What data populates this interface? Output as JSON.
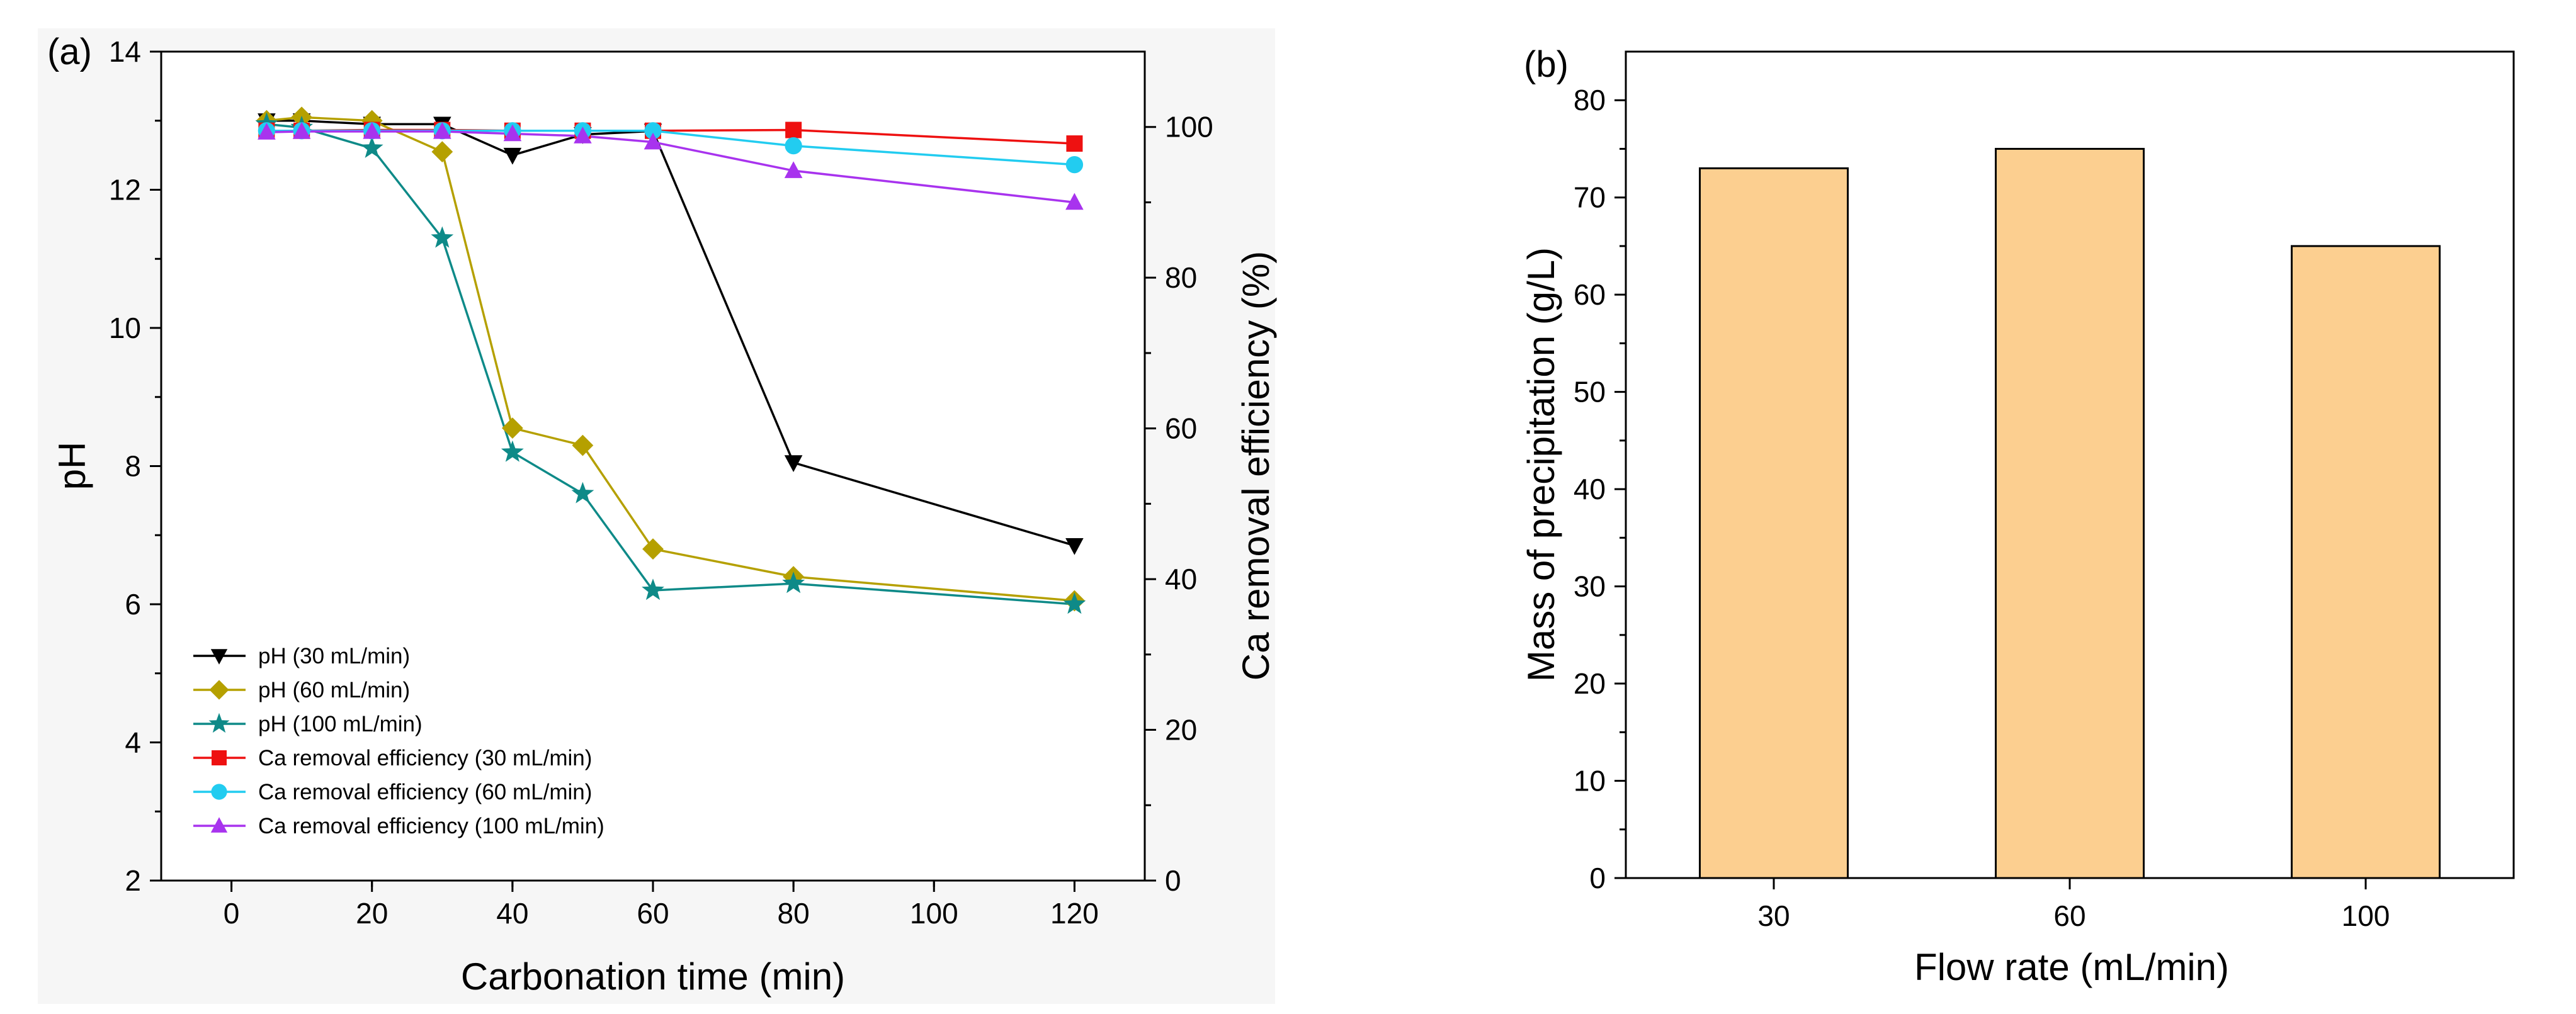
{
  "chart_data": [
    {
      "panel": "(a)",
      "type": "line",
      "xlabel": "Carbonation time (min)",
      "ylabel": "pH",
      "y2label": "Ca removal efficiency (%)",
      "xlim": [
        -10,
        130
      ],
      "ylim": [
        2,
        14
      ],
      "y2lim": [
        0,
        110
      ],
      "xticks": [
        0,
        20,
        40,
        60,
        80,
        100,
        120
      ],
      "yticks": [
        2,
        4,
        6,
        8,
        10,
        12,
        14
      ],
      "y2ticks": [
        0,
        20,
        40,
        60,
        80,
        100
      ],
      "legend_position": "bottom-left",
      "series": [
        {
          "name": "pH (30 mL/min)",
          "axis": "left",
          "color": "#000000",
          "marker": "triangle-down",
          "x": [
            5,
            10,
            20,
            30,
            40,
            50,
            60,
            80,
            120
          ],
          "y": [
            13.0,
            13.0,
            12.95,
            12.95,
            12.5,
            12.8,
            12.85,
            8.05,
            6.85
          ]
        },
        {
          "name": "pH (60 mL/min)",
          "axis": "left",
          "color": "#b5a000",
          "marker": "diamond",
          "x": [
            5,
            10,
            20,
            30,
            40,
            50,
            60,
            80,
            120
          ],
          "y": [
            13.0,
            13.05,
            13.0,
            12.55,
            8.55,
            8.3,
            6.8,
            6.4,
            6.05
          ]
        },
        {
          "name": "pH (100 mL/min)",
          "axis": "left",
          "color": "#0e8a88",
          "marker": "star",
          "x": [
            5,
            10,
            20,
            30,
            40,
            50,
            60,
            80,
            120
          ],
          "y": [
            12.95,
            12.9,
            12.6,
            11.3,
            8.2,
            7.6,
            6.2,
            6.3,
            6.0
          ]
        },
        {
          "name": "Ca removal efficiency (30 mL/min)",
          "axis": "right",
          "color": "#ee1111",
          "marker": "square",
          "x": [
            5,
            10,
            20,
            30,
            40,
            50,
            60,
            80,
            120
          ],
          "y": [
            99.5,
            99.5,
            99.6,
            99.6,
            99.5,
            99.5,
            99.5,
            99.6,
            97.8
          ]
        },
        {
          "name": "Ca removal efficiency (60 mL/min)",
          "axis": "right",
          "color": "#22ccf0",
          "marker": "circle",
          "x": [
            5,
            10,
            20,
            30,
            40,
            50,
            60,
            80,
            120
          ],
          "y": [
            99.5,
            99.5,
            99.5,
            99.5,
            99.5,
            99.5,
            99.5,
            97.5,
            95.0
          ]
        },
        {
          "name": "Ca removal efficiency (100 mL/min)",
          "axis": "right",
          "color": "#a833ee",
          "marker": "triangle-up",
          "x": [
            5,
            10,
            20,
            30,
            40,
            50,
            60,
            80,
            120
          ],
          "y": [
            99.3,
            99.4,
            99.4,
            99.4,
            99.1,
            98.8,
            98.0,
            94.2,
            90.0
          ]
        }
      ]
    },
    {
      "panel": "(b)",
      "type": "bar",
      "xlabel": "Flow rate (mL/min)",
      "ylabel": "Mass of precipitation (g/L)",
      "categories": [
        "30",
        "60",
        "100"
      ],
      "values": [
        73,
        75,
        65
      ],
      "ylim": [
        0,
        85
      ],
      "yticks": [
        0,
        10,
        20,
        30,
        40,
        50,
        60,
        70,
        80
      ],
      "bar_color": "#fccf90",
      "edge_color": "#000000"
    }
  ]
}
